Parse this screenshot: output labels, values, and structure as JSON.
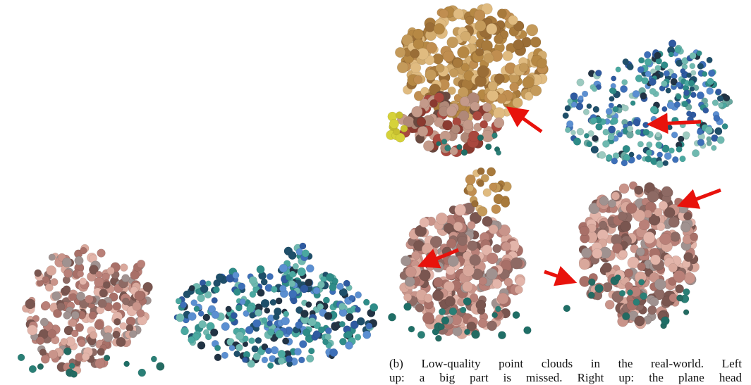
{
  "caption": {
    "lines": [
      "(b) Low-quality point clouds in the real-world. Left",
      "up: a big part is missed. Right up: the plane head"
    ]
  }
}
